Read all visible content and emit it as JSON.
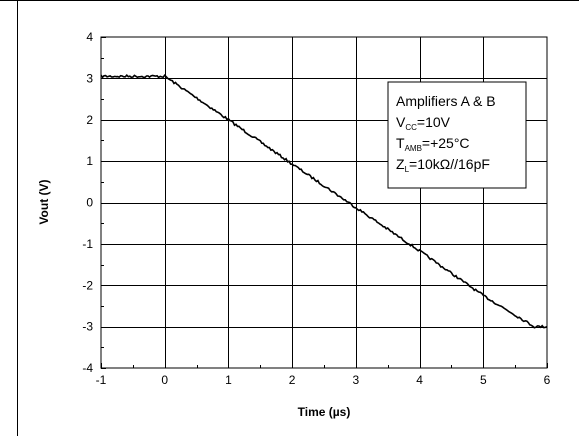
{
  "chart_data": {
    "type": "line",
    "title": "",
    "xlabel": "Time (µs)",
    "ylabel": "Vout (V)",
    "xlim": [
      -1,
      6
    ],
    "ylim": [
      -4,
      4
    ],
    "xticks": [
      "-1",
      "0",
      "1",
      "2",
      "3",
      "4",
      "5",
      "6"
    ],
    "yticks": [
      "4",
      "3",
      "2",
      "1",
      "0",
      "-1",
      "-2",
      "-3",
      "-4"
    ],
    "grid": true,
    "series": [
      {
        "x": [
          -1.0,
          -0.5,
          0.0,
          0.05,
          1.0,
          2.0,
          3.0,
          4.0,
          5.0,
          5.8,
          6.0
        ],
        "y": [
          3.05,
          3.05,
          3.05,
          3.0,
          2.0,
          0.93,
          -0.12,
          -1.17,
          -2.25,
          -3.0,
          -3.0
        ]
      }
    ],
    "legend": {
      "position": "top-right",
      "lines": [
        {
          "main": "Amplifiers A & B",
          "sub": "",
          "rest": ""
        },
        {
          "main": "V",
          "sub": "CC",
          "rest": "=10V"
        },
        {
          "main": "T",
          "sub": "AMB",
          "rest": "=+25°C"
        },
        {
          "main": "Z",
          "sub": "L",
          "rest": "=10kΩ//16pF"
        }
      ]
    }
  }
}
